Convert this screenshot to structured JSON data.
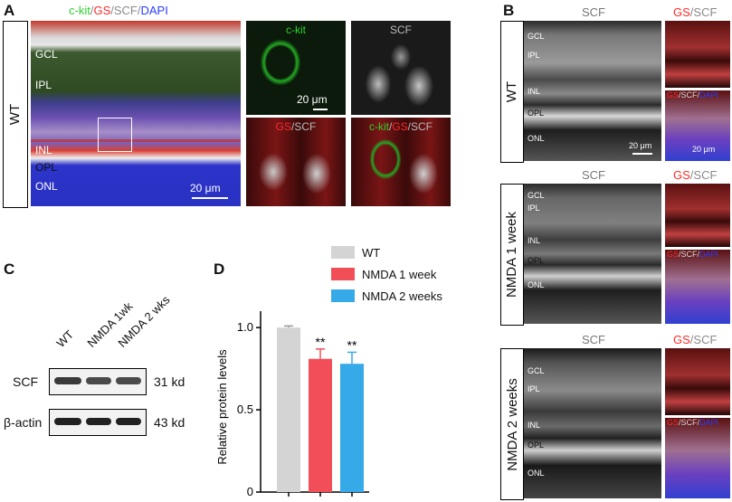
{
  "panel_A": {
    "letter": "A",
    "stain_label": [
      "c-kit",
      "/",
      "GS",
      "/SCF/",
      "DAPI"
    ],
    "genotype": "WT",
    "layers": [
      "GCL",
      "IPL",
      "INL",
      "OPL",
      "ONL"
    ],
    "scale": "20 μm",
    "zoom_titles": {
      "ckit": "c-kit",
      "scf": "SCF",
      "gs_scf": [
        "GS",
        "/SCF"
      ],
      "merge": [
        "c-kit",
        "/",
        "GS",
        "/SCF"
      ]
    },
    "zoom_scale": "20 μm"
  },
  "panel_B": {
    "letter": "B",
    "col_scf": "SCF",
    "col_gs_scf": [
      "GS",
      "/SCF"
    ],
    "inset_label": [
      "GS",
      "/SCF/",
      "DAPI"
    ],
    "layers_full": [
      "GCL",
      "IPL",
      "INL",
      "OPL",
      "ONL"
    ],
    "rows": [
      {
        "label": "WT"
      },
      {
        "label": "NMDA 1 week"
      },
      {
        "label": "NMDA 2 weeks"
      }
    ],
    "scale": "20 μm"
  },
  "panel_C": {
    "letter": "C",
    "lanes": [
      "WT",
      "NMDA 1wk",
      "NMDA 2 wks"
    ],
    "proteins": [
      {
        "name": "SCF",
        "size": "31 kd"
      },
      {
        "name": "β-actin",
        "size": "43 kd"
      }
    ]
  },
  "panel_D": {
    "letter": "D"
  },
  "chart_data": {
    "type": "bar",
    "categories": [
      "WT",
      "NMDA 1 week",
      "NMDA 2 weeks"
    ],
    "values": [
      1.0,
      0.81,
      0.78
    ],
    "errors": [
      0.01,
      0.06,
      0.07
    ],
    "significance": [
      "",
      "**",
      "**"
    ],
    "colors": [
      "#d4d4d4",
      "#f24e57",
      "#36a9e8"
    ],
    "legend": [
      "WT",
      "NMDA 1 week",
      "NMDA 2 weeks"
    ],
    "ylabel": "Relative protein levels",
    "ylim": [
      0,
      1.1
    ],
    "yticks": [
      "0",
      "0.5",
      "1.0"
    ],
    "ytick_values": [
      0,
      0.5,
      1.0
    ]
  }
}
